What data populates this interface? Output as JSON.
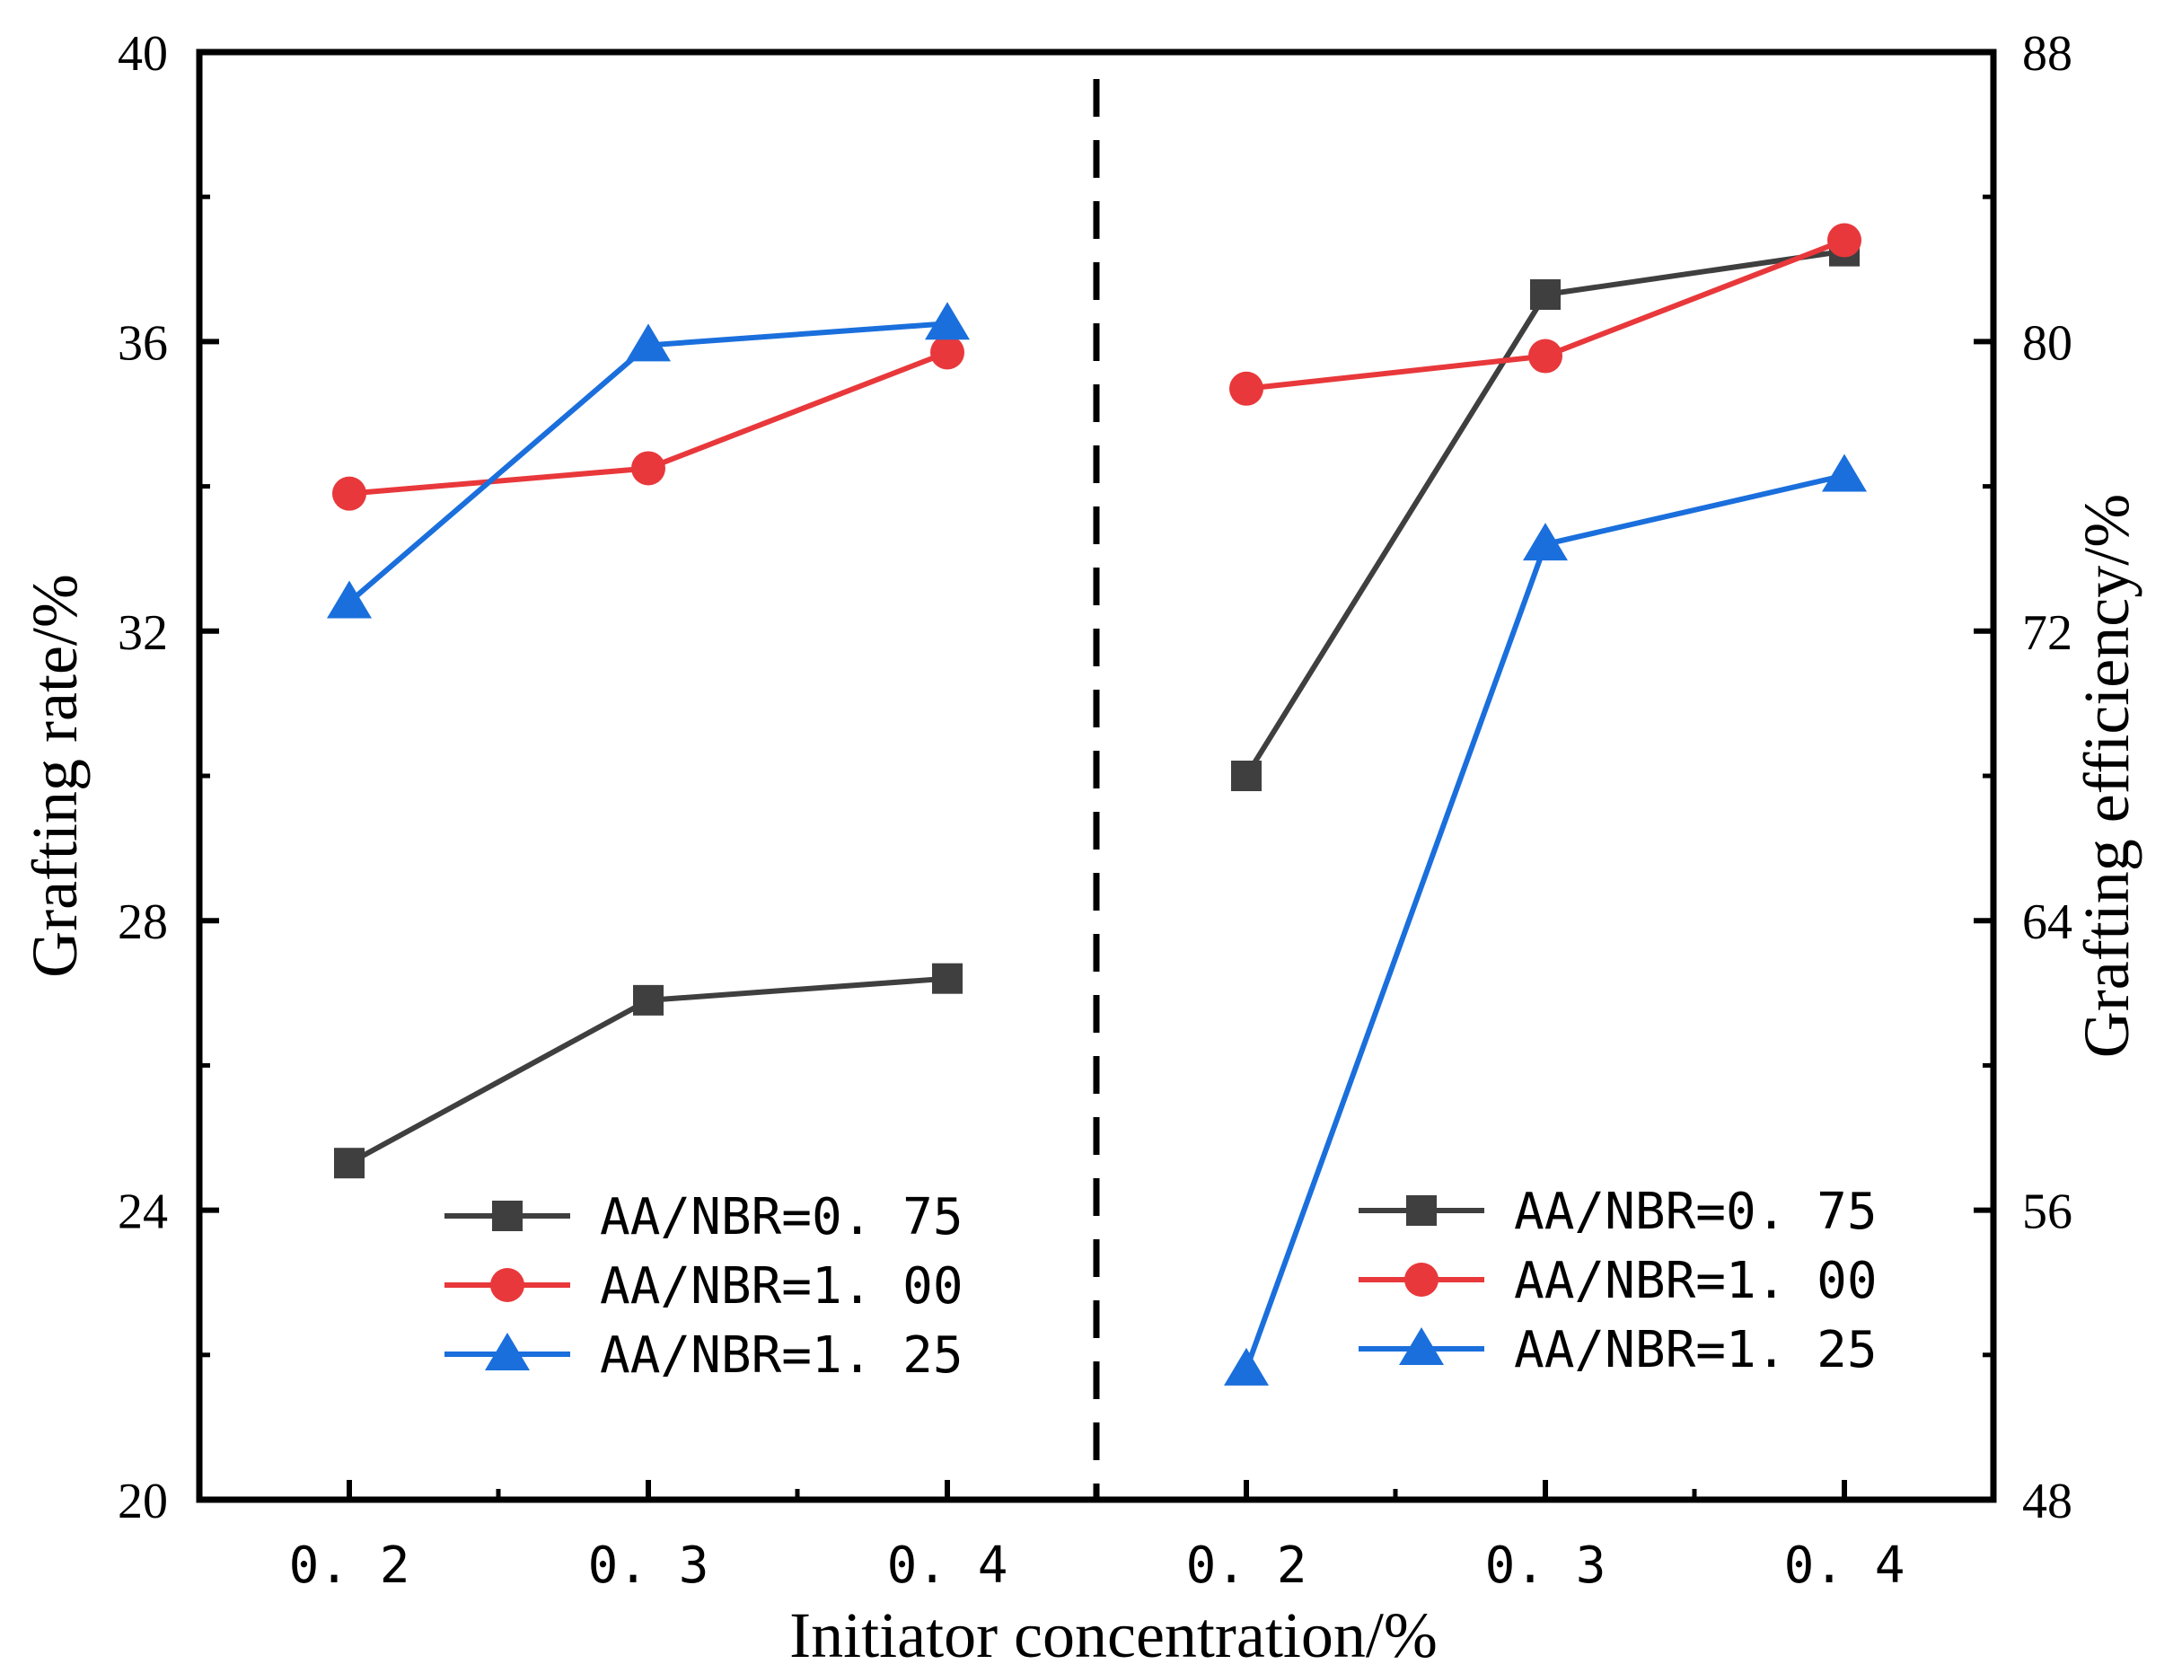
{
  "chart_data": {
    "type": "line",
    "x_categories": [
      "0.2",
      "0.3",
      "0.4"
    ],
    "x_tick_labels": [
      "0. 2",
      "0. 3",
      "0. 4",
      "0. 2",
      "0. 3",
      "0. 4"
    ],
    "xlabel": "Initiator concentration/%",
    "ylabel_left": "Grafting rate/%",
    "ylabel_right": "Grafting efficiency/%",
    "ylim_left": [
      20,
      40
    ],
    "yticks_left": [
      20,
      24,
      28,
      32,
      36,
      40
    ],
    "ylim_right": [
      48,
      88
    ],
    "yticks_right": [
      48,
      56,
      64,
      72,
      80,
      88
    ],
    "divider": "dashed vertical line between the left and right panels",
    "panels": [
      {
        "name": "Grafting rate",
        "axis": "left",
        "legend_position": "bottom-right of left panel",
        "series": [
          {
            "name": "AA/NBR=0. 75",
            "marker": "square",
            "color": "#3f3f3f",
            "values": [
              24.65,
              26.9,
              27.2
            ]
          },
          {
            "name": "AA/NBR=1. 00",
            "marker": "circle",
            "color": "#e8383b",
            "values": [
              33.9,
              34.25,
              35.85
            ]
          },
          {
            "name": "AA/NBR=1. 25",
            "marker": "triangle",
            "color": "#1a6fdc",
            "values": [
              32.4,
              35.95,
              36.25
            ]
          }
        ]
      },
      {
        "name": "Grafting efficiency",
        "axis": "right",
        "legend_position": "bottom-right of right panel",
        "series": [
          {
            "name": "AA/NBR=0. 75",
            "marker": "square",
            "color": "#3f3f3f",
            "values": [
              68.0,
              81.3,
              82.5
            ]
          },
          {
            "name": "AA/NBR=1. 00",
            "marker": "circle",
            "color": "#e8383b",
            "values": [
              78.7,
              79.6,
              82.8
            ]
          },
          {
            "name": "AA/NBR=1. 25",
            "marker": "triangle",
            "color": "#1a6fdc",
            "values": [
              51.6,
              74.4,
              76.3
            ]
          }
        ]
      }
    ]
  }
}
